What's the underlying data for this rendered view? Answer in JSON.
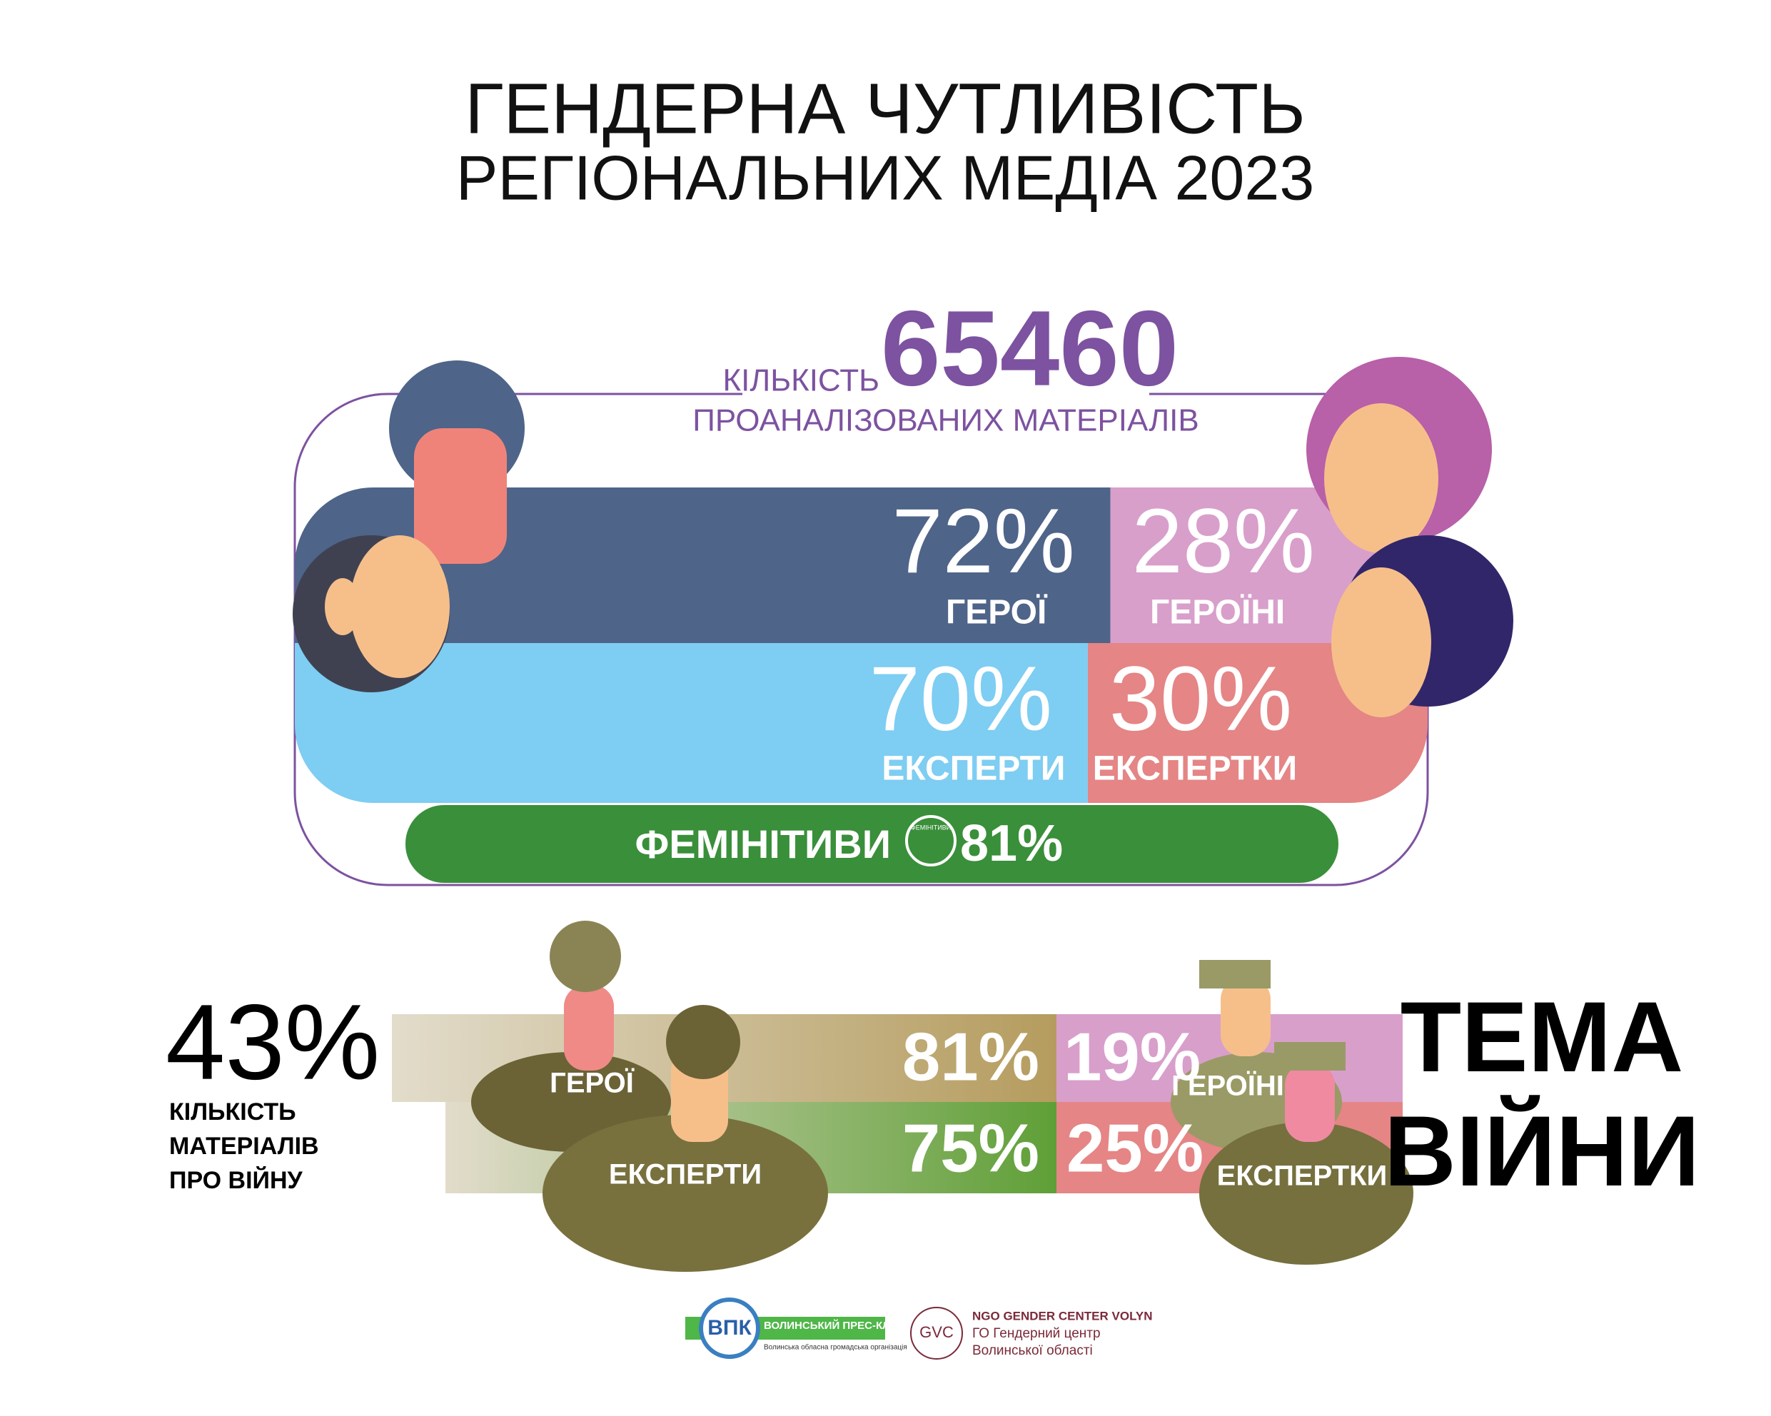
{
  "header": {
    "title_line1": "ГЕНДЕРНА ЧУТЛИВІСТЬ",
    "title_line2": "РЕГІОНАЛЬНИХ МЕДІА 2023"
  },
  "total": {
    "label_before": "КІЛЬКІСТЬ",
    "value": 65460,
    "label_after": "ПРОАНАЛІЗОВАНИХ МАТЕРІАЛІВ"
  },
  "heroes": {
    "men": {
      "value": 72,
      "value_label": "72%",
      "label": "ГЕРОЇ"
    },
    "women": {
      "value": 28,
      "value_label": "28%",
      "label": "ГЕРОЇНІ"
    }
  },
  "experts": {
    "men": {
      "value": 70,
      "value_label": "70%",
      "label": "ЕКСПЕРТИ"
    },
    "women": {
      "value": 30,
      "value_label": "30%",
      "label": "ЕКСПЕРТКИ"
    }
  },
  "feminitives": {
    "label": "ФЕМІНІТИВИ",
    "icon_text": "ФЕМІНІТИВИ",
    "value": 81,
    "value_label": "81%"
  },
  "war": {
    "share": {
      "value": 43,
      "value_label": "43%",
      "label_lines": [
        "КІЛЬКІСТЬ",
        "МАТЕРІАЛІВ",
        "ПРО ВІЙНУ"
      ]
    },
    "title_lines": [
      "ТЕМА",
      "ВІЙНИ"
    ],
    "heroes": {
      "men": {
        "value": 81,
        "value_label": "81%",
        "label": "ГЕРОЇ"
      },
      "women": {
        "value": 19,
        "value_label": "19%",
        "label": "ГЕРОЇНІ"
      }
    },
    "experts": {
      "men": {
        "value": 75,
        "value_label": "75%",
        "label": "ЕКСПЕРТИ"
      },
      "women": {
        "value": 25,
        "value_label": "25%",
        "label": "ЕКСПЕРТКИ"
      }
    }
  },
  "footer": {
    "logo1": {
      "abbr": "ВПК",
      "name": "ВОЛИНСЬКИЙ ПРЕС-КЛУБ",
      "subtitle": "Волинська обласна громадська організація"
    },
    "logo2": {
      "abbr": "GVC",
      "name_en": "NGO GENDER CENTER VOLYN",
      "name_ua1": "ГО Гендерний центр",
      "name_ua2": "Волинської області"
    }
  }
}
